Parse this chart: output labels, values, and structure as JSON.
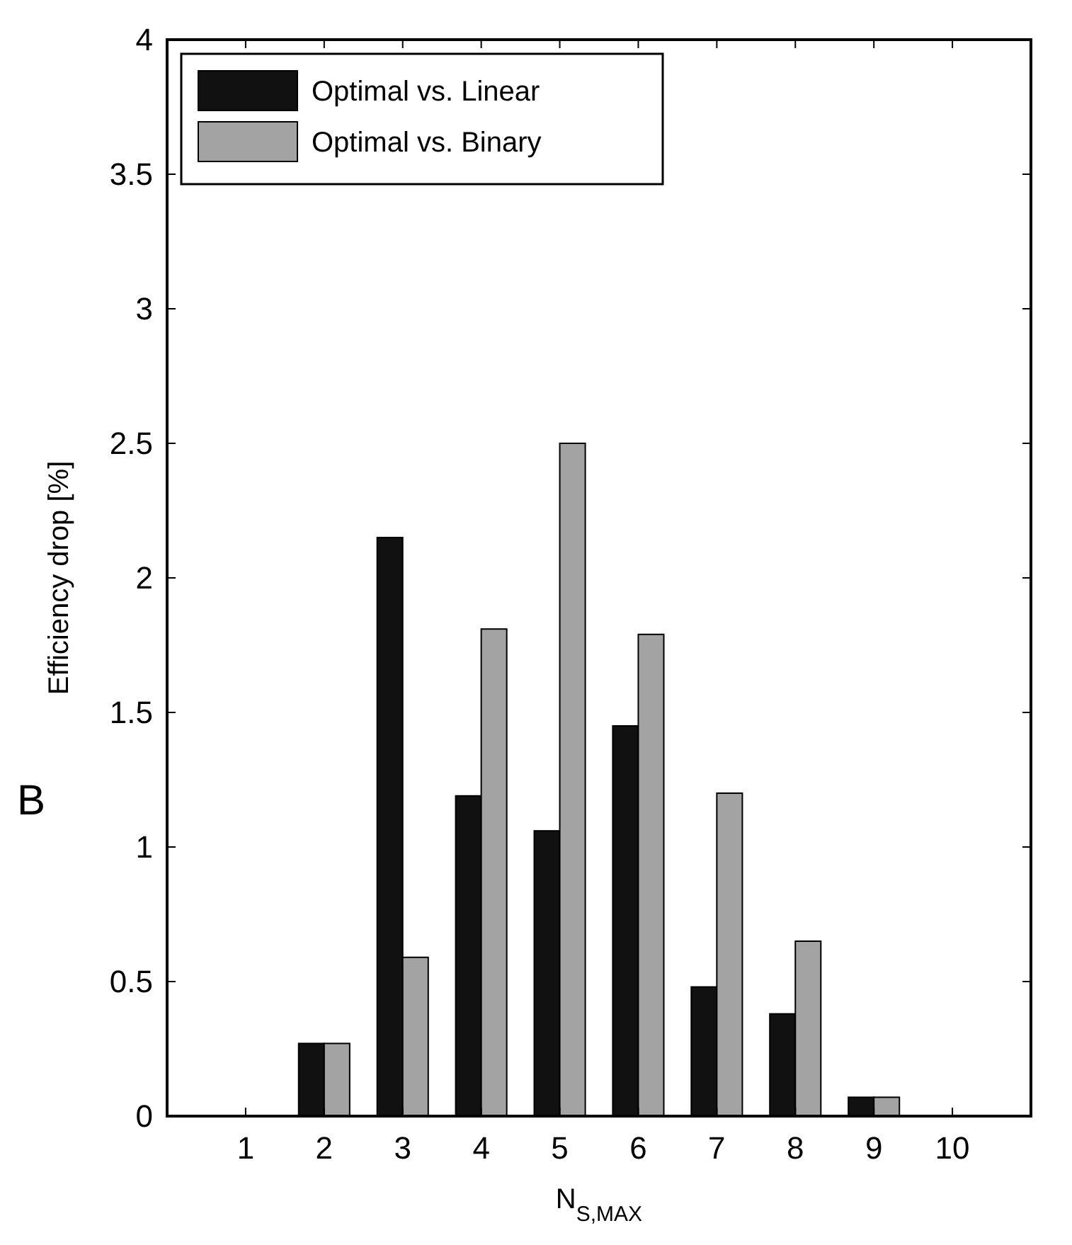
{
  "chart_data": {
    "type": "bar",
    "xlabel": "N$_{S,MAX}$",
    "ylabel": "Efficiency drop [%]",
    "categories": [
      "1",
      "2",
      "3",
      "4",
      "5",
      "6",
      "7",
      "8",
      "9",
      "10"
    ],
    "series": [
      {
        "name": "Optimal vs. Linear",
        "color": "#111111",
        "values": [
          0,
          0.27,
          2.15,
          1.19,
          1.06,
          1.45,
          0.48,
          0.38,
          0.07,
          0
        ]
      },
      {
        "name": "Optimal vs. Binary",
        "color": "#a3a3a3",
        "values": [
          0,
          0.27,
          0.59,
          1.81,
          2.5,
          1.79,
          1.2,
          0.65,
          0.07,
          0
        ]
      }
    ],
    "ylim": [
      0,
      4
    ],
    "yticks": [
      0,
      0.5,
      1,
      1.5,
      2,
      2.5,
      3,
      3.5,
      4
    ],
    "grid": false,
    "legend": "top left",
    "annotations": [
      "B"
    ]
  }
}
